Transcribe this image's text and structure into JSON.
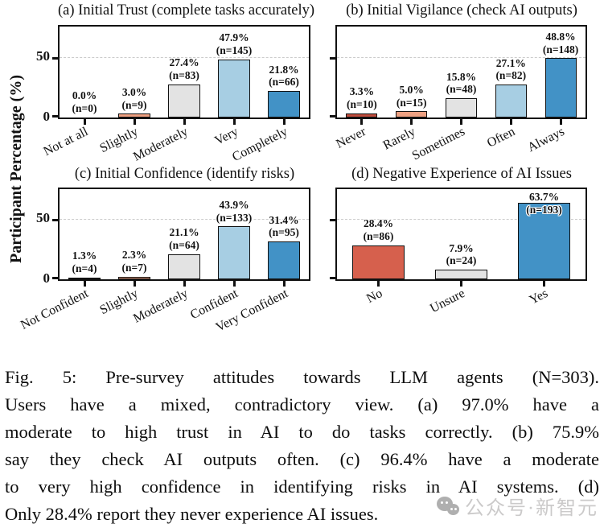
{
  "figure": {
    "ylabel": "Participant Percentage (%)"
  },
  "chart_data": [
    {
      "id": "a",
      "type": "bar",
      "title": "(a) Initial Trust (complete tasks accurately)",
      "categories": [
        "Not at all",
        "Slightly",
        "Moderately",
        "Very",
        "Completely"
      ],
      "values": [
        0.0,
        3.0,
        27.4,
        47.9,
        21.8
      ],
      "counts": [
        0,
        9,
        83,
        145,
        66
      ],
      "colors": [
        "#bf4d3e",
        "#eda081",
        "#e3e3e3",
        "#a7cee3",
        "#4292c6"
      ],
      "ylabel": "Participant Percentage (%)",
      "ylim": [
        0,
        75
      ],
      "yticks": [
        0,
        50
      ],
      "gridline_y": 50,
      "grid": "dashed",
      "show_ytick_labels": true
    },
    {
      "id": "b",
      "type": "bar",
      "title": "(b) Initial Vigilance (check AI outputs)",
      "categories": [
        "Never",
        "Rarely",
        "Sometimes",
        "Often",
        "Always"
      ],
      "values": [
        3.3,
        5.0,
        15.8,
        27.1,
        48.8
      ],
      "counts": [
        10,
        15,
        48,
        82,
        148
      ],
      "colors": [
        "#bf4d3e",
        "#eda081",
        "#e3e3e3",
        "#a7cee3",
        "#4292c6"
      ],
      "ylabel": "",
      "ylim": [
        0,
        75
      ],
      "yticks": [
        0,
        50
      ],
      "gridline_y": 50,
      "grid": "dashed",
      "show_ytick_labels": false
    },
    {
      "id": "c",
      "type": "bar",
      "title": "(c) Initial Confidence (identify risks)",
      "categories": [
        "Not Confident",
        "Slightly",
        "Moderately",
        "Confident",
        "Very Confident"
      ],
      "values": [
        1.3,
        2.3,
        21.1,
        43.9,
        31.4
      ],
      "counts": [
        4,
        7,
        64,
        133,
        95
      ],
      "colors": [
        "#bf4d3e",
        "#eda081",
        "#e3e3e3",
        "#a7cee3",
        "#4292c6"
      ],
      "ylabel": "Participant Percentage (%)",
      "ylim": [
        0,
        75
      ],
      "yticks": [
        0,
        50
      ],
      "gridline_y": 50,
      "grid": "dashed",
      "show_ytick_labels": true
    },
    {
      "id": "d",
      "type": "bar",
      "title": "(d) Negative Experience of AI Issues",
      "categories": [
        "No",
        "Unsure",
        "Yes"
      ],
      "values": [
        28.4,
        7.9,
        63.7
      ],
      "counts": [
        86,
        24,
        193
      ],
      "colors": [
        "#d6604d",
        "#e3e3e3",
        "#4292c6"
      ],
      "ylabel": "",
      "ylim": [
        0,
        75
      ],
      "yticks": [
        0,
        50
      ],
      "gridline_y": 50,
      "grid": "dashed",
      "show_ytick_labels": false
    }
  ],
  "caption": {
    "lines": [
      "Fig. 5: Pre-survey attitudes towards LLM agents (N=303).",
      "Users have a mixed, contradictory view. (a) 97.0% have a",
      "moderate to high trust in AI to do tasks correctly. (b) 75.9%",
      "say they check AI outputs often. (c) 96.4% have a moderate",
      "to very high confidence in identifying risks in AI systems. (d)",
      "Only 28.4% report they never experience AI issues."
    ]
  },
  "watermark": {
    "text": "公众号·新智元",
    "icon": "wechat-chat-bubbles-icon"
  }
}
